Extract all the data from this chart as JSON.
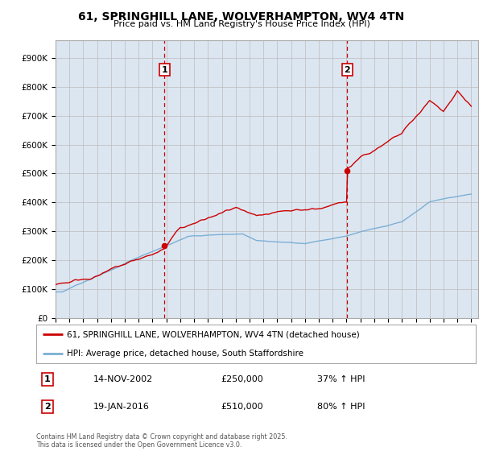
{
  "title": "61, SPRINGHILL LANE, WOLVERHAMPTON, WV4 4TN",
  "subtitle": "Price paid vs. HM Land Registry's House Price Index (HPI)",
  "ylabel_ticks": [
    "£0",
    "£100K",
    "£200K",
    "£300K",
    "£400K",
    "£500K",
    "£600K",
    "£700K",
    "£800K",
    "£900K"
  ],
  "ylim": [
    0,
    960000
  ],
  "xlim_start": 1995.0,
  "xlim_end": 2025.5,
  "sale1_date": 2002.87,
  "sale1_price": 250000,
  "sale2_date": 2016.05,
  "sale2_price": 510000,
  "red_color": "#cc0000",
  "blue_color": "#7bafd4",
  "vline_color": "#cc0000",
  "bg_color": "#dce6f1",
  "plot_bg": "#ffffff",
  "grid_color": "#bbbbbb",
  "legend_label_red": "61, SPRINGHILL LANE, WOLVERHAMPTON, WV4 4TN (detached house)",
  "legend_label_blue": "HPI: Average price, detached house, South Staffordshire",
  "annot1_num": "1",
  "annot1_date": "14-NOV-2002",
  "annot1_price": "£250,000",
  "annot1_hpi": "37% ↑ HPI",
  "annot2_num": "2",
  "annot2_date": "19-JAN-2016",
  "annot2_price": "£510,000",
  "annot2_hpi": "80% ↑ HPI",
  "footer": "Contains HM Land Registry data © Crown copyright and database right 2025.\nThis data is licensed under the Open Government Licence v3.0."
}
